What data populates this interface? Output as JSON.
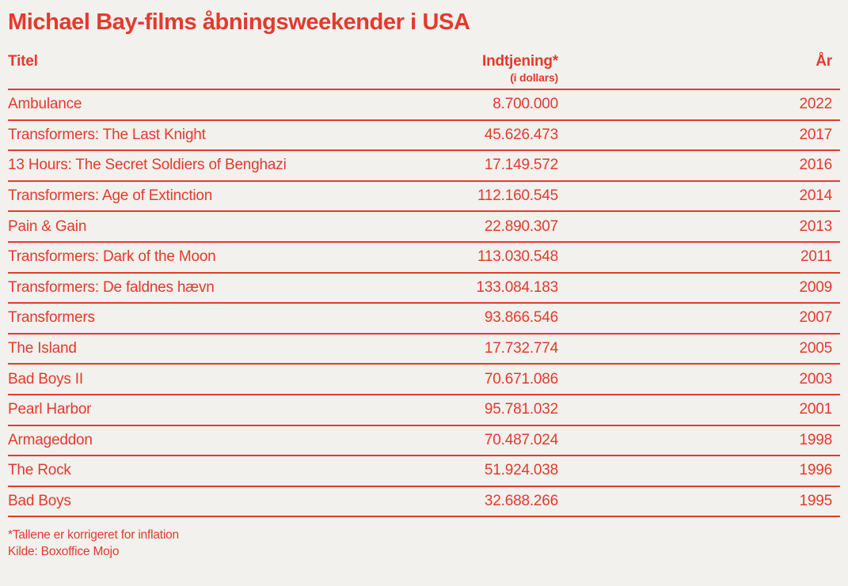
{
  "colors": {
    "accent": "#e43a2c",
    "background": "#f2f1ee"
  },
  "header": {
    "title": "Michael Bay-films åbningsweekender i USA"
  },
  "table": {
    "columns": {
      "title": "Titel",
      "gross": "Indtjening*",
      "gross_sub": "(i dollars)",
      "year": "År"
    },
    "rows": [
      {
        "title": "Ambulance",
        "gross": "8.700.000",
        "year": "2022"
      },
      {
        "title": "Transformers: The Last Knight",
        "gross": "45.626.473",
        "year": "2017"
      },
      {
        "title": "13 Hours: The Secret Soldiers of Benghazi",
        "gross": "17.149.572",
        "year": "2016"
      },
      {
        "title": "Transformers: Age of Extinction",
        "gross": "112.160.545",
        "year": "2014"
      },
      {
        "title": "Pain & Gain",
        "gross": "22.890.307",
        "year": "2013"
      },
      {
        "title": "Transformers: Dark of the Moon",
        "gross": "113.030.548",
        "year": "2011"
      },
      {
        "title": "Transformers: De faldnes hævn",
        "gross": "133.084.183",
        "year": "2009"
      },
      {
        "title": "Transformers",
        "gross": "93.866.546",
        "year": "2007"
      },
      {
        "title": "The Island",
        "gross": "17.732.774",
        "year": "2005"
      },
      {
        "title": "Bad Boys II",
        "gross": "70.671.086",
        "year": "2003"
      },
      {
        "title": "Pearl Harbor",
        "gross": "95.781.032",
        "year": "2001"
      },
      {
        "title": "Armageddon",
        "gross": "70.487.024",
        "year": "1998"
      },
      {
        "title": "The Rock",
        "gross": "51.924.038",
        "year": "1996"
      },
      {
        "title": "Bad Boys",
        "gross": "32.688.266",
        "year": "1995"
      }
    ]
  },
  "footer": {
    "note": "*Tallene er korrigeret for inflation",
    "source": "Kilde: Boxoffice Mojo"
  },
  "chart_data": {
    "type": "table",
    "title": "Michael Bay-films åbningsweekender i USA",
    "columns": [
      "Titel",
      "Indtjening* (i dollars)",
      "År"
    ],
    "rows": [
      [
        "Ambulance",
        8700000,
        2022
      ],
      [
        "Transformers: The Last Knight",
        45626473,
        2017
      ],
      [
        "13 Hours: The Secret Soldiers of Benghazi",
        17149572,
        2016
      ],
      [
        "Transformers: Age of Extinction",
        112160545,
        2014
      ],
      [
        "Pain & Gain",
        22890307,
        2013
      ],
      [
        "Transformers: Dark of the Moon",
        113030548,
        2011
      ],
      [
        "Transformers: De faldnes hævn",
        133084183,
        2009
      ],
      [
        "Transformers",
        93866546,
        2007
      ],
      [
        "The Island",
        17732774,
        2005
      ],
      [
        "Bad Boys II",
        70671086,
        2003
      ],
      [
        "Pearl Harbor",
        95781032,
        2001
      ],
      [
        "Armageddon",
        70487024,
        1998
      ],
      [
        "The Rock",
        51924038,
        1996
      ],
      [
        "Bad Boys",
        32688266,
        1995
      ]
    ],
    "notes": [
      "*Tallene er korrigeret for inflation",
      "Kilde: Boxoffice Mojo"
    ]
  }
}
